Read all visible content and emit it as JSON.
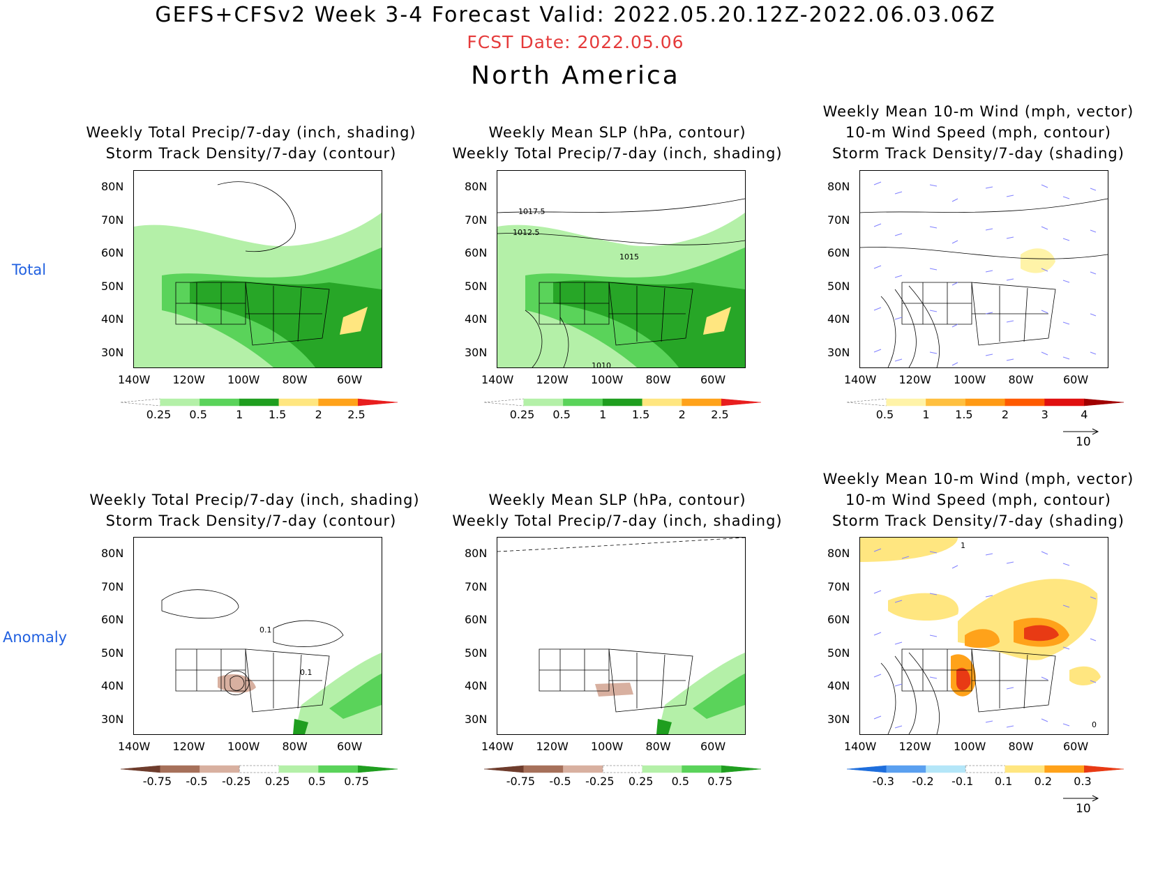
{
  "header": {
    "title": "GEFS+CFSv2 Week 3-4 Forecast       Valid: 2022.05.20.12Z-2022.06.03.06Z",
    "fcst_date": "FCST Date: 2022.05.06",
    "region": "North America"
  },
  "rows": {
    "total": "Total",
    "anomaly": "Anomaly"
  },
  "panels": {
    "p1": {
      "line1": "Weekly Total Precip/7-day (inch, shading)",
      "line2": "Storm Track Density/7-day (contour)"
    },
    "p2": {
      "line1": "Weekly Mean SLP (hPa, contour)",
      "line2": "Weekly Total Precip/7-day (inch, shading)"
    },
    "p3": {
      "line1": "Weekly Mean 10-m Wind (mph, vector)",
      "line2": "10-m Wind Speed (mph, contour)",
      "line3": "Storm Track Density/7-day (shading)"
    },
    "p4": {
      "line1": "Weekly Total Precip/7-day (inch, shading)",
      "line2": "Storm Track Density/7-day (contour)"
    },
    "p5": {
      "line1": "Weekly Mean SLP (hPa, contour)",
      "line2": "Weekly Total Precip/7-day (inch, shading)"
    },
    "p6": {
      "line1": "Weekly Mean 10-m Wind (mph, vector)",
      "line2": "10-m Wind Speed (mph, contour)",
      "line3": "Storm Track Density/7-day (shading)"
    }
  },
  "axes": {
    "lat": [
      "80N",
      "70N",
      "60N",
      "50N",
      "40N",
      "30N"
    ],
    "lon": [
      "140W",
      "120W",
      "100W",
      "80W",
      "60W"
    ]
  },
  "contour_labels": {
    "p2": [
      "1017.5",
      "1012.5",
      "1015",
      "1010"
    ],
    "p4": [
      "0.1",
      "0.1"
    ],
    "p6": [
      "1",
      "0"
    ]
  },
  "colorbars": {
    "precip_total": {
      "labels": [
        "0.25",
        "0.5",
        "1",
        "1.5",
        "2",
        "2.5"
      ],
      "colors": [
        "#ffffff",
        "#b4f0a8",
        "#5ad35a",
        "#1f9e1f",
        "#ffe680",
        "#ffa21a",
        "#e81e1e"
      ]
    },
    "storm_total": {
      "labels": [
        "0.5",
        "1",
        "1.5",
        "2",
        "3",
        "4"
      ],
      "colors": [
        "#ffffff",
        "#fff3a8",
        "#ffc040",
        "#ff9a14",
        "#ff5a00",
        "#e01010",
        "#a00000"
      ]
    },
    "precip_anom": {
      "labels": [
        "-0.75",
        "-0.5",
        "-0.25",
        "0.25",
        "0.5",
        "0.75"
      ],
      "colors": [
        "#6e3c2c",
        "#a6705a",
        "#d8b0a0",
        "#ffffff",
        "#b4f0a8",
        "#5ad35a",
        "#1f9e1f"
      ]
    },
    "storm_anom": {
      "labels": [
        "-0.3",
        "-0.2",
        "-0.1",
        "0.1",
        "0.2",
        "0.3"
      ],
      "colors": [
        "#1e6edc",
        "#5aa0f0",
        "#b4e6f8",
        "#ffffff",
        "#ffe680",
        "#ffa21a",
        "#e83a14"
      ]
    }
  },
  "vector_ref": "10",
  "colors": {
    "title_red": "#e53a3a",
    "row_label_blue": "#2060e0",
    "wind_vector": "#8080ff"
  }
}
